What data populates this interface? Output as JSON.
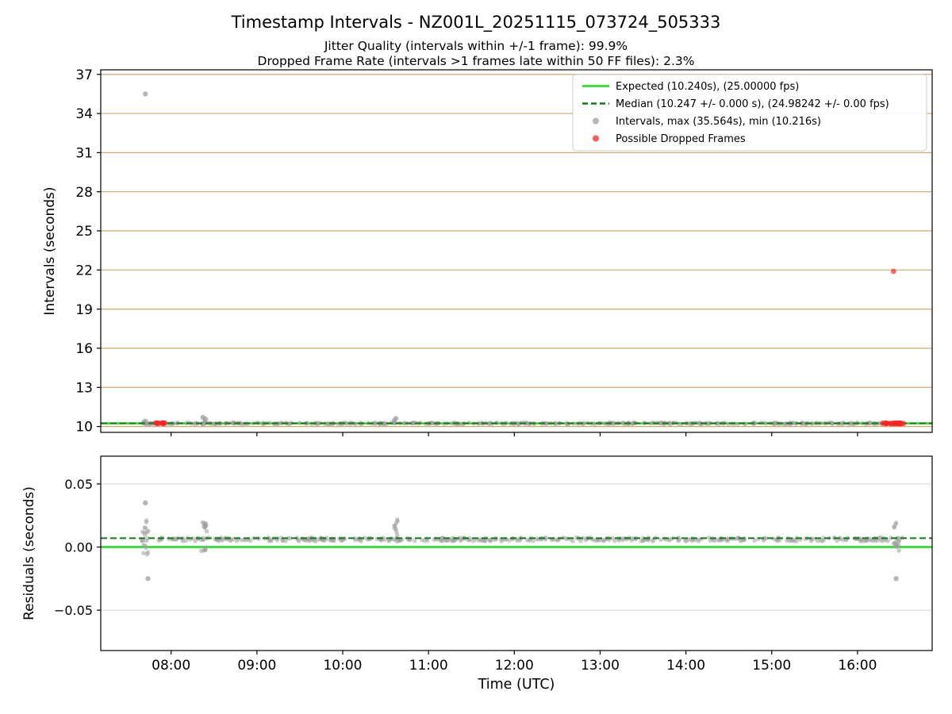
{
  "figure": {
    "title": "Timestamp Intervals - NZ001L_20251115_073724_505333",
    "subtitle_line1": "Jitter Quality (intervals within +/-1 frame): 99.9%",
    "subtitle_line2": "Dropped Frame Rate (intervals >1 frames late within 50 FF files): 2.3%",
    "xlabel": "Time (UTC)"
  },
  "colors": {
    "expected": "#18e018",
    "median": "#117a11",
    "gray": "#9e9e9e",
    "red": "#ff2222",
    "spine": "#000000",
    "grid_tan": "#cfa970",
    "grid_gray": "#dcdcdc",
    "legend_border": "#cccccc"
  },
  "chart_data": [
    {
      "type": "scatter",
      "id": "intervals",
      "ylabel": "Intervals (seconds)",
      "ylim": [
        9.55,
        37.35
      ],
      "yticks": [
        10,
        13,
        16,
        19,
        22,
        25,
        28,
        31,
        34,
        37
      ],
      "ytick_labels": [
        "10",
        "13",
        "16",
        "19",
        "22",
        "25",
        "28",
        "31",
        "34",
        "37"
      ],
      "xlim": [
        7.18,
        16.87
      ],
      "xticks": [
        8,
        9,
        10,
        11,
        12,
        13,
        14,
        15,
        16
      ],
      "xtick_labels": [
        "08:00",
        "09:00",
        "10:00",
        "11:00",
        "12:00",
        "13:00",
        "14:00",
        "15:00",
        "16:00"
      ],
      "show_xtick_labels": false,
      "grid_color_key": "grid_tan",
      "lines": [
        {
          "name": "expected",
          "y": 10.24,
          "dash": false,
          "color_key": "expected",
          "width": 2.5
        },
        {
          "name": "median",
          "y": 10.247,
          "dash": true,
          "color_key": "median",
          "width": 2
        }
      ],
      "gray_band": {
        "x_start": 7.63,
        "x_end": 16.53,
        "y": 10.24,
        "jitter": 0.055,
        "count": 430
      },
      "clusters": [
        {
          "x": 7.7,
          "y_min": 10.2,
          "y_max": 10.47,
          "count": 7,
          "x_jitter": 0.02
        },
        {
          "x": 8.38,
          "y_min": 10.2,
          "y_max": 10.42,
          "count": 5,
          "x_jitter": 0.02
        }
      ],
      "gray_points": [
        [
          7.7,
          35.5
        ],
        [
          8.37,
          10.7
        ],
        [
          8.4,
          10.58
        ],
        [
          10.62,
          10.62
        ],
        [
          10.6,
          10.45
        ]
      ],
      "red_bands": [
        {
          "x_start": 7.8,
          "x_end": 7.93,
          "y": 10.24,
          "count": 10
        },
        {
          "x_start": 16.28,
          "x_end": 16.54,
          "y": 10.24,
          "count": 24
        }
      ],
      "red_points": [
        [
          16.42,
          21.9
        ]
      ],
      "legend": {
        "items": [
          {
            "type": "line",
            "color_key": "expected",
            "dash": false,
            "label": "Expected (10.240s), (25.00000 fps)"
          },
          {
            "type": "line",
            "color_key": "median",
            "dash": true,
            "label": "Median (10.247 +/- 0.000 s), (24.98242 +/- 0.00 fps)"
          },
          {
            "type": "dot",
            "color_key": "gray",
            "label": "Intervals, max (35.564s), min (10.216s)"
          },
          {
            "type": "dot",
            "color_key": "red",
            "label": "Possible Dropped Frames"
          }
        ]
      }
    },
    {
      "type": "scatter",
      "id": "residuals",
      "ylabel": "Residuals (seconds)",
      "ylim": [
        -0.082,
        0.072
      ],
      "yticks": [
        -0.05,
        0.0,
        0.05
      ],
      "ytick_labels": [
        "−0.05",
        "0.00",
        "0.05"
      ],
      "xlim": [
        7.18,
        16.87
      ],
      "xticks": [
        8,
        9,
        10,
        11,
        12,
        13,
        14,
        15,
        16
      ],
      "xtick_labels": [
        "08:00",
        "09:00",
        "10:00",
        "11:00",
        "12:00",
        "13:00",
        "14:00",
        "15:00",
        "16:00"
      ],
      "show_xtick_labels": true,
      "grid_color_key": "grid_gray",
      "lines": [
        {
          "name": "expected",
          "y": 0.0,
          "dash": false,
          "color_key": "expected",
          "width": 2.5
        },
        {
          "name": "median",
          "y": 0.007,
          "dash": true,
          "color_key": "median",
          "width": 2
        }
      ],
      "gray_band": {
        "x_start": 7.63,
        "x_end": 16.53,
        "y": 0.006,
        "jitter": 0.0014,
        "count": 430
      },
      "clusters": [
        {
          "x": 7.7,
          "y_min": -0.006,
          "y_max": 0.022,
          "count": 16,
          "x_jitter": 0.035
        },
        {
          "x": 8.38,
          "y_min": -0.004,
          "y_max": 0.021,
          "count": 16,
          "x_jitter": 0.035
        },
        {
          "x": 10.62,
          "y_min": -0.001,
          "y_max": 0.022,
          "count": 12,
          "x_jitter": 0.025
        },
        {
          "x": 16.45,
          "y_min": -0.004,
          "y_max": 0.02,
          "count": 14,
          "x_jitter": 0.035
        }
      ],
      "gray_points": [
        [
          7.7,
          0.035
        ],
        [
          7.73,
          -0.025
        ],
        [
          16.45,
          -0.025
        ]
      ],
      "red_bands": [],
      "red_points": []
    }
  ]
}
